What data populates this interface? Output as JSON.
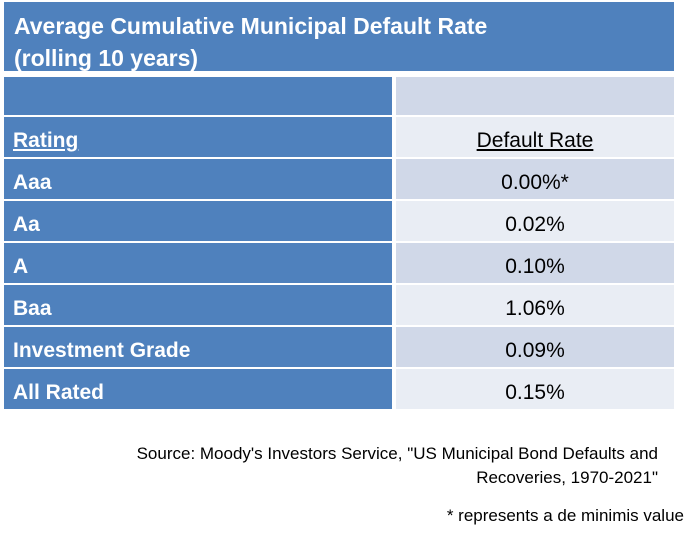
{
  "chart_data": {
    "type": "table",
    "title_line1": "Average Cumulative Municipal Default Rate",
    "title_line2": "(rolling 10 years)",
    "columns": [
      "Rating",
      "Default Rate"
    ],
    "rows": [
      {
        "rating": "Aaa",
        "rate": "0.00%*"
      },
      {
        "rating": "Aa",
        "rate": "0.02%"
      },
      {
        "rating": "A",
        "rate": "0.10%"
      },
      {
        "rating": "Baa",
        "rate": "1.06%"
      },
      {
        "rating": "Investment Grade",
        "rate": "0.09%"
      },
      {
        "rating": "All Rated",
        "rate": "0.15%"
      }
    ],
    "source_line1": "Source: Moody's Investors Service, \"US Municipal Bond Defaults and",
    "source_line2": "Recoveries, 1970-2021\"",
    "footnote": "* represents a de minimis value"
  },
  "colors": {
    "header_blue": "#4f81bd",
    "row_dark": "#d0d8e8",
    "row_light": "#e9edf4"
  }
}
